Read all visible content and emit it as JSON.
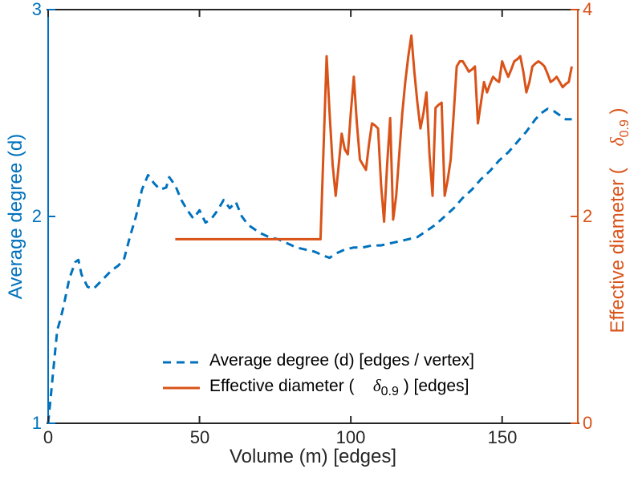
{
  "figure": {
    "bg": "#ffffff",
    "axis_color_x": "#262626"
  },
  "axes": {
    "x": {
      "label": "Volume (m) [edges]",
      "ticks": [
        "0",
        "50",
        "100",
        "150"
      ],
      "tick_values": [
        0,
        50,
        100,
        150
      ],
      "lim": [
        0,
        175
      ]
    },
    "y_left": {
      "label": "Average degree (d)",
      "ticks": [
        "1",
        "2",
        "3"
      ],
      "tick_values": [
        1,
        2,
        3
      ],
      "lim": [
        1,
        3
      ],
      "color": "#0072BD"
    },
    "y_right": {
      "label_pre": "Effective diameter (    ",
      "label_sym": "δ",
      "label_sub": "0.9",
      "label_post": " )",
      "ticks": [
        "0",
        "2",
        "4"
      ],
      "tick_values": [
        0,
        2,
        4
      ],
      "lim": [
        0,
        4
      ],
      "color": "#D95319"
    }
  },
  "legend": {
    "position": "south-inside",
    "entries": [
      {
        "pre": "Average degree (d) [edges / vertex]",
        "sym": "",
        "sub": "",
        "post": "",
        "style": "dashed",
        "color": "#0072BD"
      },
      {
        "pre": "Effective diameter (    ",
        "sym": "δ",
        "sub": "0.9",
        "post": " ) [edges]",
        "style": "solid",
        "color": "#D95319"
      }
    ]
  },
  "chart_data": {
    "type": "line",
    "title": "",
    "xlabel": "Volume (m) [edges]",
    "ylabel_left": "Average degree (d)",
    "ylabel_right": "Effective diameter ( δ0.9 )",
    "xlim": [
      0,
      175
    ],
    "xticks": [
      0,
      50,
      100,
      150
    ],
    "grid": false,
    "legend_position": "south-inside",
    "series": [
      {
        "name": "Average degree (d) [edges / vertex]",
        "axis": "left",
        "ylim": [
          1,
          3
        ],
        "yticks": [
          1,
          2,
          3
        ],
        "color": "#0072BD",
        "dash": true,
        "points": [
          [
            0,
            1.0
          ],
          [
            1,
            1.15
          ],
          [
            2,
            1.3
          ],
          [
            3,
            1.45
          ],
          [
            4,
            1.5
          ],
          [
            5,
            1.56
          ],
          [
            7,
            1.7
          ],
          [
            9,
            1.78
          ],
          [
            10,
            1.79
          ],
          [
            11,
            1.72
          ],
          [
            13,
            1.66
          ],
          [
            15,
            1.65
          ],
          [
            17,
            1.68
          ],
          [
            19,
            1.71
          ],
          [
            21,
            1.74
          ],
          [
            23,
            1.76
          ],
          [
            25,
            1.79
          ],
          [
            27,
            1.9
          ],
          [
            29,
            2.0
          ],
          [
            31,
            2.13
          ],
          [
            33,
            2.2
          ],
          [
            35,
            2.16
          ],
          [
            37,
            2.13
          ],
          [
            39,
            2.14
          ],
          [
            40,
            2.19
          ],
          [
            42,
            2.15
          ],
          [
            44,
            2.08
          ],
          [
            46,
            2.03
          ],
          [
            48,
            1.99
          ],
          [
            50,
            2.03
          ],
          [
            52,
            1.97
          ],
          [
            54,
            1.99
          ],
          [
            56,
            2.03
          ],
          [
            58,
            2.08
          ],
          [
            60,
            2.04
          ],
          [
            62,
            2.07
          ],
          [
            64,
            2.0
          ],
          [
            66,
            1.96
          ],
          [
            68,
            1.94
          ],
          [
            70,
            1.92
          ],
          [
            73,
            1.9
          ],
          [
            76,
            1.89
          ],
          [
            79,
            1.87
          ],
          [
            82,
            1.85
          ],
          [
            85,
            1.84
          ],
          [
            88,
            1.83
          ],
          [
            91,
            1.81
          ],
          [
            93,
            1.8
          ],
          [
            95,
            1.82
          ],
          [
            98,
            1.84
          ],
          [
            101,
            1.85
          ],
          [
            104,
            1.85
          ],
          [
            107,
            1.86
          ],
          [
            110,
            1.86
          ],
          [
            113,
            1.87
          ],
          [
            116,
            1.88
          ],
          [
            119,
            1.89
          ],
          [
            122,
            1.9
          ],
          [
            125,
            1.93
          ],
          [
            128,
            1.96
          ],
          [
            131,
            2.0
          ],
          [
            134,
            2.04
          ],
          [
            137,
            2.09
          ],
          [
            140,
            2.13
          ],
          [
            143,
            2.18
          ],
          [
            146,
            2.22
          ],
          [
            149,
            2.27
          ],
          [
            152,
            2.31
          ],
          [
            155,
            2.36
          ],
          [
            158,
            2.41
          ],
          [
            161,
            2.47
          ],
          [
            163,
            2.5
          ],
          [
            165,
            2.52
          ],
          [
            167,
            2.51
          ],
          [
            169,
            2.49
          ],
          [
            171,
            2.47
          ],
          [
            173,
            2.47
          ]
        ]
      },
      {
        "name": "Effective diameter ( δ0.9 ) [edges]",
        "axis": "right",
        "ylim": [
          0,
          4
        ],
        "yticks": [
          0,
          2,
          4
        ],
        "color": "#D95319",
        "dash": false,
        "points": [
          [
            42,
            1.78
          ],
          [
            88,
            1.78
          ],
          [
            90,
            1.78
          ],
          [
            92,
            3.55
          ],
          [
            93,
            3.0
          ],
          [
            94,
            2.5
          ],
          [
            95,
            2.2
          ],
          [
            96,
            2.5
          ],
          [
            97,
            2.8
          ],
          [
            98,
            2.65
          ],
          [
            99,
            2.6
          ],
          [
            100,
            3.0
          ],
          [
            101,
            3.35
          ],
          [
            102,
            2.9
          ],
          [
            103,
            2.55
          ],
          [
            104,
            2.5
          ],
          [
            105,
            2.45
          ],
          [
            106,
            2.7
          ],
          [
            107,
            2.9
          ],
          [
            108,
            2.88
          ],
          [
            109,
            2.85
          ],
          [
            110,
            2.3
          ],
          [
            111,
            1.95
          ],
          [
            112,
            2.5
          ],
          [
            113,
            2.95
          ],
          [
            114,
            1.97
          ],
          [
            115,
            2.2
          ],
          [
            116,
            2.6
          ],
          [
            117,
            3.0
          ],
          [
            118,
            3.3
          ],
          [
            119,
            3.55
          ],
          [
            120,
            3.75
          ],
          [
            121,
            3.4
          ],
          [
            122,
            3.1
          ],
          [
            123,
            2.85
          ],
          [
            124,
            3.0
          ],
          [
            125,
            3.2
          ],
          [
            126,
            2.6
          ],
          [
            127,
            2.2
          ],
          [
            128,
            3.05
          ],
          [
            129,
            3.08
          ],
          [
            130,
            3.1
          ],
          [
            131,
            2.2
          ],
          [
            132,
            2.35
          ],
          [
            133,
            2.55
          ],
          [
            134,
            3.0
          ],
          [
            135,
            3.45
          ],
          [
            136,
            3.5
          ],
          [
            137,
            3.5
          ],
          [
            138,
            3.45
          ],
          [
            139,
            3.4
          ],
          [
            140,
            3.42
          ],
          [
            141,
            3.45
          ],
          [
            142,
            2.9
          ],
          [
            143,
            3.1
          ],
          [
            144,
            3.3
          ],
          [
            145,
            3.2
          ],
          [
            146,
            3.28
          ],
          [
            147,
            3.35
          ],
          [
            148,
            3.32
          ],
          [
            149,
            3.3
          ],
          [
            150,
            3.5
          ],
          [
            151,
            3.42
          ],
          [
            152,
            3.35
          ],
          [
            153,
            3.42
          ],
          [
            154,
            3.5
          ],
          [
            155,
            3.52
          ],
          [
            156,
            3.55
          ],
          [
            157,
            3.4
          ],
          [
            158,
            3.2
          ],
          [
            159,
            3.3
          ],
          [
            160,
            3.45
          ],
          [
            161,
            3.48
          ],
          [
            162,
            3.5
          ],
          [
            163,
            3.48
          ],
          [
            164,
            3.45
          ],
          [
            165,
            3.38
          ],
          [
            166,
            3.3
          ],
          [
            167,
            3.32
          ],
          [
            168,
            3.35
          ],
          [
            169,
            3.3
          ],
          [
            170,
            3.25
          ],
          [
            171,
            3.28
          ],
          [
            172,
            3.3
          ],
          [
            173,
            3.45
          ]
        ]
      }
    ]
  }
}
